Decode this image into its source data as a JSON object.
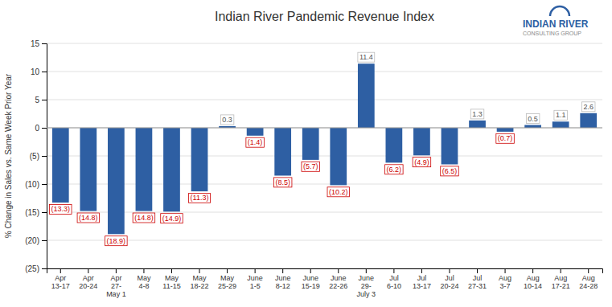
{
  "chart_data": {
    "type": "bar",
    "title": "Indian River Pandemic Revenue Index",
    "ylabel": "% Change in Sales vs. Same Week Prior Year",
    "categories": [
      "Apr\n13-17",
      "Apr\n20-24",
      "Apr\n27-\nMay 1",
      "May\n4-8",
      "May\n11-15",
      "May\n18-22",
      "May\n25-29",
      "June\n1-5",
      "June\n8-12",
      "June\n15-19",
      "June\n22-26",
      "June\n29-\nJuly 3",
      "Jul\n6-10",
      "Jul\n13-17",
      "Jul\n20-24",
      "Jul\n27-31",
      "Aug\n3-7",
      "Aug\n10-14",
      "Aug\n17-21",
      "Aug\n24-28"
    ],
    "values": [
      -13.3,
      -14.8,
      -18.9,
      -14.8,
      -14.9,
      -11.3,
      0.3,
      -1.4,
      -8.5,
      -5.7,
      -10.2,
      11.4,
      -6.2,
      -4.9,
      -6.5,
      1.3,
      -0.7,
      0.5,
      1.1,
      2.6
    ],
    "value_labels": [
      "(13.3)",
      "(14.8)",
      "(18.9)",
      "(14.8)",
      "(14.9)",
      "(11.3)",
      "0.3",
      "(1.4)",
      "(8.5)",
      "(5.7)",
      "(10.2)",
      "11.4",
      "(6.2)",
      "(4.9)",
      "(6.5)",
      "1.3",
      "(0.7)",
      "0.5",
      "1.1",
      "2.6"
    ],
    "color": "#2e5fa3",
    "ylim": [
      -25,
      15
    ],
    "yticks": [
      {
        "value": -25,
        "label": "(25)"
      },
      {
        "value": -20,
        "label": "(20)"
      },
      {
        "value": -15,
        "label": "(15)"
      },
      {
        "value": -10,
        "label": "(10)"
      },
      {
        "value": -5,
        "label": "(5)"
      },
      0,
      5,
      10,
      15
    ],
    "grid": true,
    "data_labels": true,
    "annotations": [
      "INDIAN RIVER",
      "CONSULTING GROUP"
    ]
  }
}
